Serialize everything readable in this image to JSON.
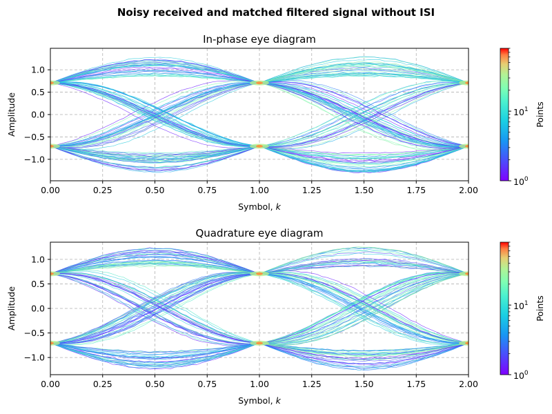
{
  "figure": {
    "suptitle": "Noisy received and matched filtered signal without ISI"
  },
  "chart_data": [
    {
      "type": "heatmap",
      "subtype": "eye-diagram",
      "title": "In-phase eye diagram",
      "xlabel": "Symbol, k",
      "ylabel": "Amplitude",
      "xlim": [
        0,
        2
      ],
      "ylim": [
        -1.48,
        1.48
      ],
      "xticks": [
        "0.00",
        "0.25",
        "0.50",
        "0.75",
        "1.00",
        "1.25",
        "1.50",
        "1.75",
        "2.00"
      ],
      "yticks": [
        "−1.0",
        "−0.5",
        "0.0",
        "0.5",
        "1.0"
      ],
      "ytick_values": [
        -1.0,
        -0.5,
        0.0,
        0.5,
        1.0
      ],
      "symbol_levels": [
        0.707,
        -0.707
      ],
      "peak_amplitude": 1.3,
      "grid": true,
      "colorbar": {
        "label": "Points",
        "scale": "log",
        "range": [
          1,
          80
        ],
        "ticks": [
          "10",
          "10"
        ],
        "tick_exponents": [
          "0",
          "1"
        ],
        "tick_values": [
          1,
          10
        ],
        "colormap": "rainbow"
      }
    },
    {
      "type": "heatmap",
      "subtype": "eye-diagram",
      "title": "Quadrature eye diagram",
      "xlabel": "Symbol, k",
      "ylabel": "Amplitude",
      "xlim": [
        0,
        2
      ],
      "ylim": [
        -1.35,
        1.35
      ],
      "xticks": [
        "0.00",
        "0.25",
        "0.50",
        "0.75",
        "1.00",
        "1.25",
        "1.50",
        "1.75",
        "2.00"
      ],
      "yticks": [
        "−1.0",
        "−0.5",
        "0.0",
        "0.5",
        "1.0"
      ],
      "ytick_values": [
        -1.0,
        -0.5,
        0.0,
        0.5,
        1.0
      ],
      "symbol_levels": [
        0.707,
        -0.707
      ],
      "peak_amplitude": 1.25,
      "grid": true,
      "colorbar": {
        "label": "Points",
        "scale": "log",
        "range": [
          1,
          80
        ],
        "ticks": [
          "10",
          "10"
        ],
        "tick_exponents": [
          "0",
          "1"
        ],
        "tick_values": [
          1,
          10
        ],
        "colormap": "rainbow"
      }
    }
  ]
}
